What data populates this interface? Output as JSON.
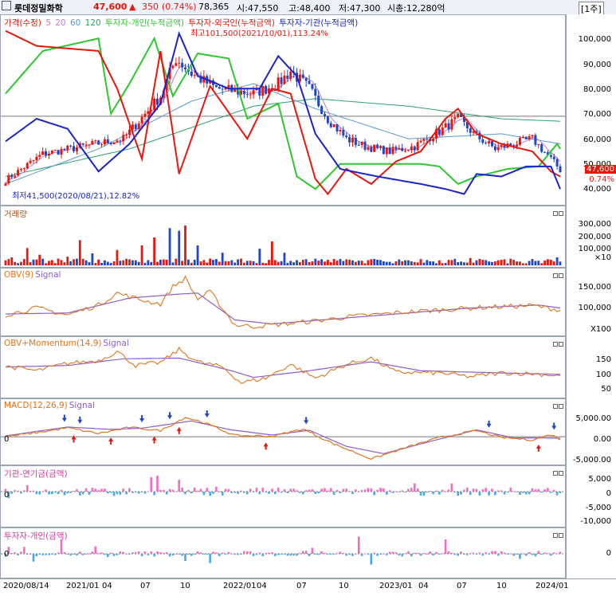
{
  "header": {
    "stock_name": "롯데정밀화학",
    "price": "47,600",
    "change_arrow": "▲",
    "change": "350",
    "change_pct": "(0.74%)",
    "volume": "78,365",
    "open": "시:47,550",
    "high": "고:48,400",
    "low": "저:47,300",
    "market_cap": "시총:12,280억",
    "period_button": "[1주]"
  },
  "colors": {
    "up": "#e8160c",
    "down": "#1f45c9",
    "individual": "#2ec72e",
    "foreign": "#e8160c",
    "institution": "#1b24c8",
    "obv": "#e0741c",
    "signal": "#8a5fd1",
    "bar_pos": "#f06cc0",
    "bar_neg": "#4aa8e8"
  },
  "chart_data": [
    {
      "type": "line",
      "panel": "price",
      "legend": [
        "가격(수정)",
        "5",
        "20",
        "60",
        "120",
        "투자자-개인(누적금액)",
        "투자자-외국인(누적금액)",
        "투자자-기관(누적금액)"
      ],
      "annotations": {
        "high": "최고101,500(2021/10/01),113.24%",
        "low": "최저41,500(2020/08/21),12.82%"
      },
      "ylim": [
        35000,
        108000
      ],
      "yticks": [
        "100,000",
        "90,000",
        "80,000",
        "70,000",
        "60,000",
        "50,000",
        "40,000"
      ],
      "last_price_label": "47,600",
      "last_pct_label": "0.74%",
      "x_periods": 180,
      "close_anchors": [
        [
          0,
          43500
        ],
        [
          12,
          54000
        ],
        [
          25,
          57000
        ],
        [
          38,
          60000
        ],
        [
          50,
          77000
        ],
        [
          55,
          92000
        ],
        [
          60,
          86000
        ],
        [
          68,
          80000
        ],
        [
          80,
          78000
        ],
        [
          88,
          82000
        ],
        [
          92,
          87000
        ],
        [
          98,
          80000
        ],
        [
          104,
          68000
        ],
        [
          110,
          60000
        ],
        [
          116,
          57000
        ],
        [
          124,
          55000
        ],
        [
          132,
          57000
        ],
        [
          140,
          63000
        ],
        [
          146,
          68000
        ],
        [
          152,
          61000
        ],
        [
          158,
          56000
        ],
        [
          164,
          58000
        ],
        [
          170,
          60000
        ],
        [
          176,
          52000
        ],
        [
          179,
          47600
        ]
      ],
      "series": [
        {
          "name": "투자자-개인(누적금액)",
          "anchors": [
            [
              0,
              78000
            ],
            [
              12,
              95000
            ],
            [
              30,
              100000
            ],
            [
              34,
              70000
            ],
            [
              40,
              82000
            ],
            [
              48,
              100000
            ],
            [
              54,
              77000
            ],
            [
              62,
              94000
            ],
            [
              72,
              92000
            ],
            [
              78,
              68000
            ],
            [
              88,
              74000
            ],
            [
              94,
              45000
            ],
            [
              100,
              40000
            ],
            [
              108,
              50000
            ],
            [
              120,
              50000
            ],
            [
              134,
              50000
            ],
            [
              140,
              49000
            ],
            [
              146,
              42000
            ],
            [
              152,
              45000
            ],
            [
              162,
              48000
            ],
            [
              172,
              49000
            ],
            [
              178,
              58000
            ],
            [
              179,
              56000
            ]
          ]
        },
        {
          "name": "투자자-외국인(누적금액)",
          "anchors": [
            [
              0,
              103000
            ],
            [
              10,
              97000
            ],
            [
              20,
              96000
            ],
            [
              30,
              95000
            ],
            [
              36,
              80000
            ],
            [
              44,
              52000
            ],
            [
              50,
              95000
            ],
            [
              56,
              46000
            ],
            [
              66,
              81000
            ],
            [
              78,
              60000
            ],
            [
              86,
              80000
            ],
            [
              92,
              78000
            ],
            [
              100,
              44000
            ],
            [
              104,
              38000
            ],
            [
              110,
              48000
            ],
            [
              118,
              42000
            ],
            [
              126,
              51000
            ],
            [
              134,
              55000
            ],
            [
              142,
              68000
            ],
            [
              146,
              72000
            ],
            [
              152,
              62000
            ],
            [
              160,
              58000
            ],
            [
              170,
              55000
            ],
            [
              176,
              47000
            ],
            [
              179,
              45000
            ]
          ]
        },
        {
          "name": "투자자-기관(누적금액)",
          "anchors": [
            [
              0,
              59000
            ],
            [
              10,
              68000
            ],
            [
              20,
              64000
            ],
            [
              30,
              47000
            ],
            [
              40,
              58000
            ],
            [
              50,
              74000
            ],
            [
              56,
              102000
            ],
            [
              62,
              85000
            ],
            [
              72,
              80000
            ],
            [
              82,
              80000
            ],
            [
              88,
              93000
            ],
            [
              94,
              85000
            ],
            [
              100,
              62000
            ],
            [
              108,
              48000
            ],
            [
              120,
              45000
            ],
            [
              134,
              42000
            ],
            [
              142,
              40000
            ],
            [
              148,
              38000
            ],
            [
              152,
              46000
            ],
            [
              160,
              45000
            ],
            [
              168,
              49000
            ],
            [
              176,
              49000
            ],
            [
              179,
              40000
            ]
          ]
        }
      ],
      "moving_average_anchors": {
        "120": [
          [
            0,
            45000
          ],
          [
            40,
            56000
          ],
          [
            80,
            73000
          ],
          [
            100,
            76000
          ],
          [
            130,
            73000
          ],
          [
            160,
            68000
          ],
          [
            179,
            67000
          ]
        ],
        "60": [
          [
            0,
            42000
          ],
          [
            30,
            56000
          ],
          [
            60,
            75000
          ],
          [
            80,
            82000
          ],
          [
            100,
            72000
          ],
          [
            130,
            60000
          ],
          [
            160,
            62000
          ],
          [
            179,
            58000
          ]
        ]
      },
      "reference_line": 69000
    },
    {
      "type": "bar",
      "panel": "volume",
      "legend": [
        "거래량"
      ],
      "yticks": [
        "300,000",
        "200,000",
        "100,000",
        "×10"
      ],
      "ylim": [
        0,
        420000
      ],
      "x_periods": 180,
      "spike_anchors": [
        [
          2,
          60000
        ],
        [
          7,
          130000
        ],
        [
          11,
          80000
        ],
        [
          20,
          65000
        ],
        [
          24,
          190000
        ],
        [
          28,
          90000
        ],
        [
          36,
          115000
        ],
        [
          44,
          150000
        ],
        [
          48,
          210000
        ],
        [
          53,
          280000
        ],
        [
          56,
          260000
        ],
        [
          58,
          300000
        ],
        [
          62,
          150000
        ],
        [
          70,
          95000
        ],
        [
          82,
          125000
        ],
        [
          86,
          180000
        ],
        [
          90,
          95000
        ],
        [
          100,
          50000
        ],
        [
          110,
          45000
        ],
        [
          130,
          38000
        ],
        [
          150,
          55000
        ],
        [
          160,
          42000
        ],
        [
          170,
          48000
        ],
        [
          178,
          60000
        ]
      ]
    },
    {
      "type": "line",
      "panel": "obv",
      "legend": [
        "OBV(9)",
        "Signal"
      ],
      "yticks": [
        "150,000",
        "100,000",
        "X100"
      ],
      "ylim": [
        60000,
        185000
      ],
      "series": [
        {
          "name": "OBV(9)",
          "anchors": [
            [
              0,
              98000
            ],
            [
              10,
              112000
            ],
            [
              20,
              98000
            ],
            [
              30,
              118000
            ],
            [
              36,
              142000
            ],
            [
              44,
              128000
            ],
            [
              50,
              120000
            ],
            [
              54,
              155000
            ],
            [
              58,
              172000
            ],
            [
              62,
              130000
            ],
            [
              66,
              145000
            ],
            [
              74,
              78000
            ],
            [
              80,
              75000
            ],
            [
              90,
              80000
            ],
            [
              100,
              86000
            ],
            [
              110,
              94000
            ],
            [
              130,
              104000
            ],
            [
              150,
              112000
            ],
            [
              170,
              117000
            ],
            [
              179,
              108000
            ]
          ]
        },
        {
          "name": "Signal",
          "anchors": [
            [
              0,
              100000
            ],
            [
              20,
              102000
            ],
            [
              40,
              132000
            ],
            [
              56,
              140000
            ],
            [
              62,
              142000
            ],
            [
              74,
              88000
            ],
            [
              86,
              80000
            ],
            [
              110,
              92000
            ],
            [
              150,
              112000
            ],
            [
              172,
              118000
            ],
            [
              179,
              112000
            ]
          ]
        }
      ]
    },
    {
      "type": "line",
      "panel": "obv_momentum",
      "legend": [
        "OBV+Momentum(14,9)",
        "Signal"
      ],
      "yticks": [
        "150",
        "100",
        "50"
      ],
      "ylim": [
        30,
        180
      ],
      "series": [
        {
          "name": "OBV+Momentum(14,9)",
          "anchors": [
            [
              0,
              110
            ],
            [
              10,
              98
            ],
            [
              20,
              118
            ],
            [
              30,
              125
            ],
            [
              36,
              150
            ],
            [
              42,
              112
            ],
            [
              50,
              120
            ],
            [
              56,
              155
            ],
            [
              62,
              122
            ],
            [
              70,
              108
            ],
            [
              76,
              66
            ],
            [
              84,
              78
            ],
            [
              92,
              115
            ],
            [
              100,
              78
            ],
            [
              110,
              115
            ],
            [
              118,
              132
            ],
            [
              126,
              94
            ],
            [
              140,
              92
            ],
            [
              150,
              82
            ],
            [
              160,
              92
            ],
            [
              170,
              90
            ],
            [
              179,
              85
            ]
          ]
        },
        {
          "name": "Signal",
          "anchors": [
            [
              0,
              108
            ],
            [
              20,
              112
            ],
            [
              38,
              130
            ],
            [
              56,
              132
            ],
            [
              72,
              100
            ],
            [
              80,
              80
            ],
            [
              98,
              98
            ],
            [
              118,
              122
            ],
            [
              134,
              98
            ],
            [
              160,
              92
            ],
            [
              179,
              88
            ]
          ]
        }
      ]
    },
    {
      "type": "line",
      "panel": "macd",
      "legend": [
        "MACD(12,26,9)",
        "Signal"
      ],
      "yticks": [
        "5,000.00",
        "0.00",
        "-5,000.00"
      ],
      "ylim": [
        -6500,
        8500
      ],
      "zero_label": "0",
      "series": [
        {
          "name": "MACD(12,26,9)",
          "anchors": [
            [
              0,
              0
            ],
            [
              10,
              1000
            ],
            [
              20,
              2200
            ],
            [
              30,
              800
            ],
            [
              40,
              2300
            ],
            [
              50,
              1500
            ],
            [
              58,
              4800
            ],
            [
              64,
              3500
            ],
            [
              74,
              300
            ],
            [
              86,
              100
            ],
            [
              96,
              1900
            ],
            [
              106,
              -1800
            ],
            [
              118,
              -5500
            ],
            [
              130,
              -2500
            ],
            [
              140,
              -200
            ],
            [
              152,
              1500
            ],
            [
              160,
              -200
            ],
            [
              170,
              -800
            ],
            [
              176,
              500
            ],
            [
              179,
              -600
            ]
          ]
        },
        {
          "name": "Signal",
          "anchors": [
            [
              0,
              200
            ],
            [
              20,
              2400
            ],
            [
              34,
              1800
            ],
            [
              44,
              2100
            ],
            [
              60,
              3900
            ],
            [
              72,
              1800
            ],
            [
              86,
              400
            ],
            [
              98,
              1600
            ],
            [
              110,
              -2400
            ],
            [
              122,
              -4200
            ],
            [
              140,
              -600
            ],
            [
              152,
              1700
            ],
            [
              164,
              -300
            ],
            [
              172,
              -300
            ],
            [
              179,
              -400
            ]
          ]
        }
      ],
      "buy_signals_x": [
        22,
        34,
        48,
        56,
        84,
        118,
        172
      ],
      "sell_signals_x": [
        19,
        24,
        44,
        53,
        65,
        97,
        156,
        177
      ]
    },
    {
      "type": "bar",
      "panel": "institution_pension",
      "legend": [
        "기관-연기금(금액)"
      ],
      "yticks": [
        "5,000",
        "0",
        "-5,000",
        "-10,000"
      ],
      "ylim": [
        -12000,
        8000
      ],
      "zero_label": "0",
      "x_periods": 180
    },
    {
      "type": "bar",
      "panel": "individual_investor",
      "legend": [
        "투자자-개인(금액)"
      ],
      "yticks": [
        "0"
      ],
      "ylim": [
        -12000,
        12000
      ],
      "zero_label": "0",
      "x_periods": 180
    }
  ],
  "xaxis": {
    "labels": [
      "2020/08/14",
      "2021/01",
      "04",
      "07",
      "10",
      "2022/01",
      "04",
      "07",
      "10",
      "2023/01",
      "04",
      "07",
      "10",
      "2024/01"
    ]
  }
}
